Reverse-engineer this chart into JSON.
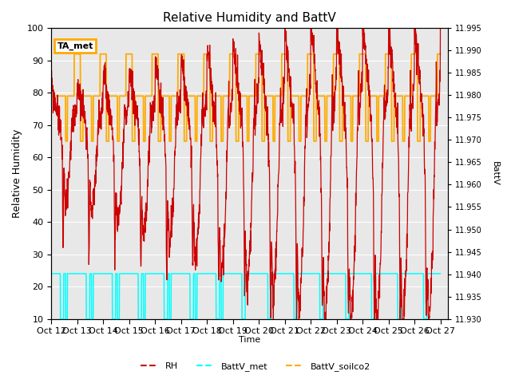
{
  "title": "Relative Humidity and BattV",
  "ylabel_left": "Relative Humidity",
  "ylabel_right": "BattV",
  "xlabel": "Time",
  "ylim_left": [
    10,
    100
  ],
  "ylim_right": [
    11.93,
    11.995
  ],
  "background_color": "#ffffff",
  "plot_bg_color": "#e8e8e8",
  "x_tick_labels": [
    "Oct 12",
    "Oct 13",
    "Oct 14",
    "Oct 15",
    "Oct 16",
    "Oct 17",
    "Oct 18",
    "Oct 19",
    "Oct 20",
    "Oct 21",
    "Oct 22",
    "Oct 23",
    "Oct 24",
    "Oct 25",
    "Oct 26",
    "Oct 27"
  ],
  "annotation_box": "TA_met",
  "rh_color": "#cc0000",
  "battv_met_color": "#00ffff",
  "battv_soilco2_color": "#ffaa00",
  "grid_color": "#ffffff",
  "legend_labels": [
    "RH",
    "BattV_met",
    "BattV_soilco2"
  ],
  "bvs_high": 92,
  "bvs_mid": 79,
  "bvs_low": 65,
  "bvm_high": 24,
  "bvm_low": 10
}
